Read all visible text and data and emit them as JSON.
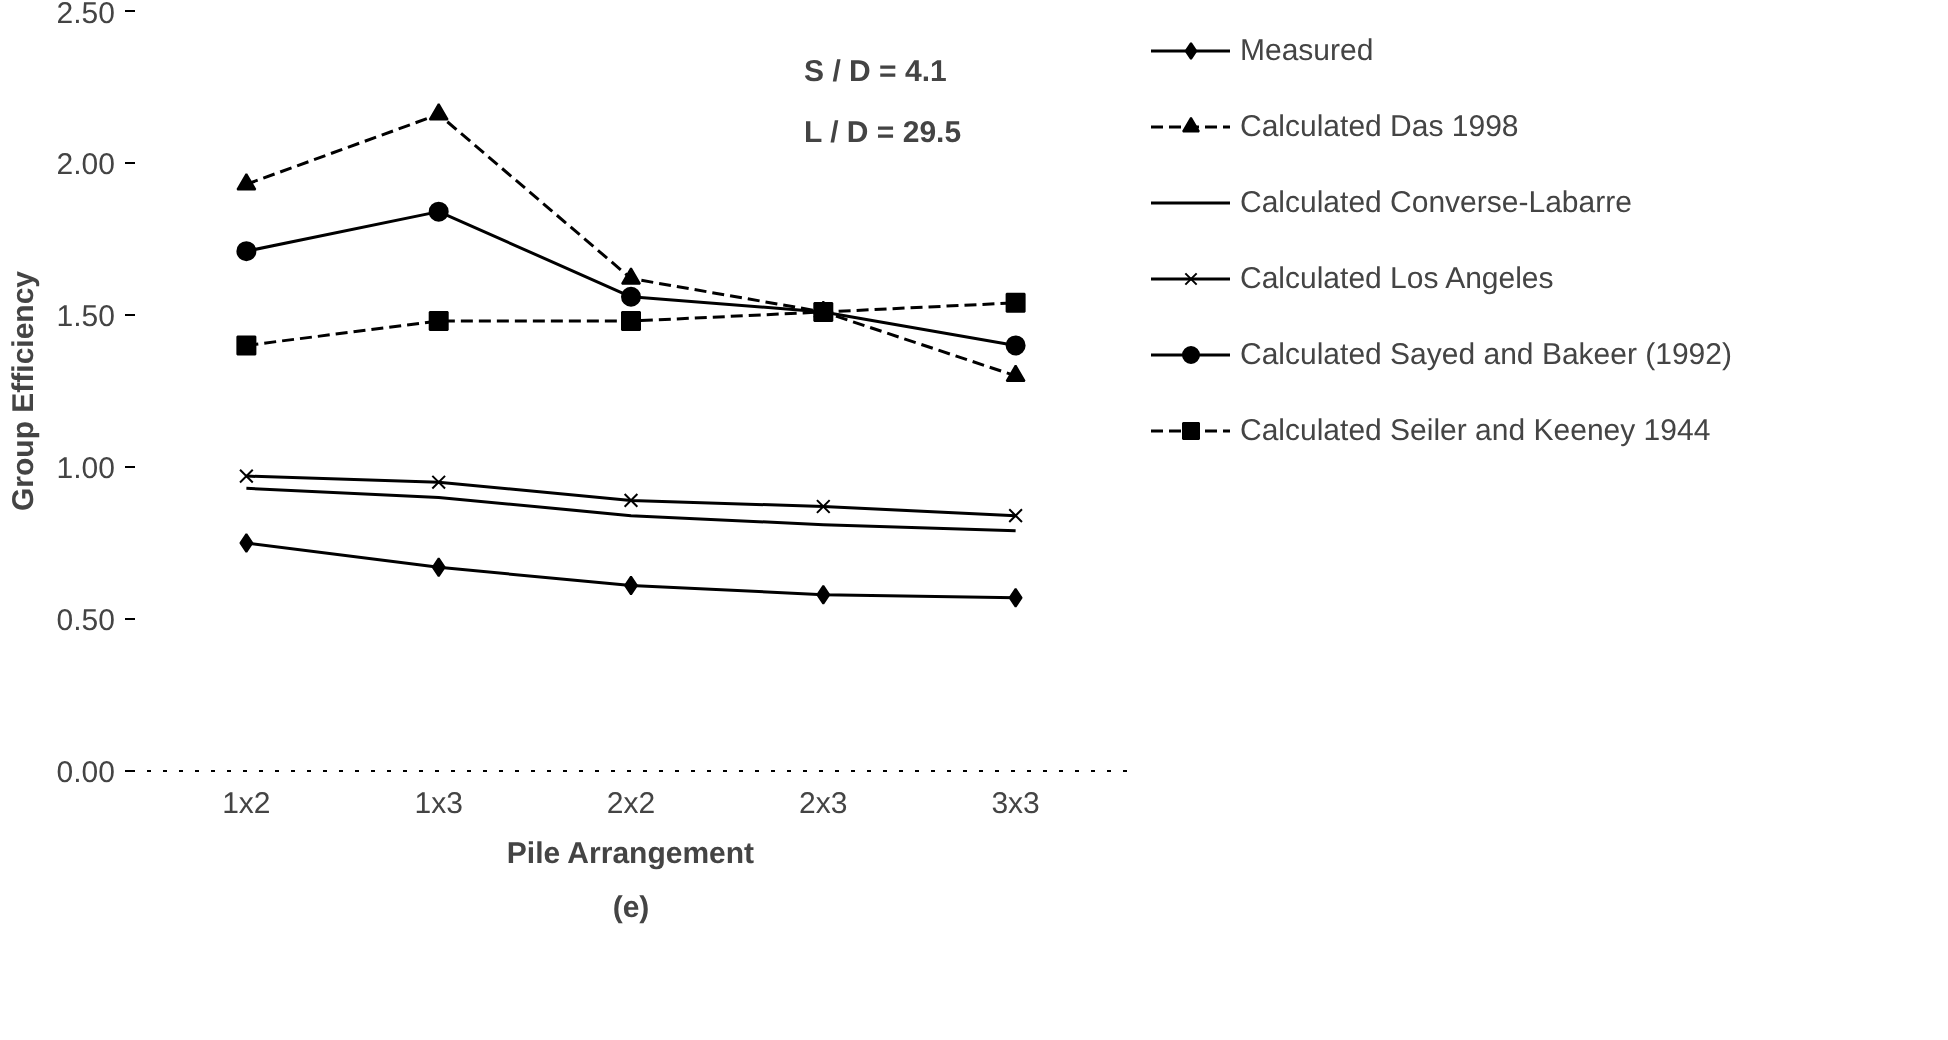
{
  "chart_data": {
    "type": "line",
    "xlabel": "Pile Arrangement",
    "ylabel": "Group Efficiency",
    "categories": [
      "1x2",
      "1x3",
      "2x2",
      "2x3",
      "3x3"
    ],
    "ylim": [
      0,
      2.5
    ],
    "yticks": [
      {
        "value": 0,
        "label": "0.00"
      },
      {
        "value": 0.5,
        "label": "0.50"
      },
      {
        "value": 1,
        "label": "1.00"
      },
      {
        "value": 1.5,
        "label": "1.50"
      },
      {
        "value": 2,
        "label": "2.00"
      },
      {
        "value": 2.5,
        "label": "2.50"
      }
    ],
    "grid": false,
    "legend": "right",
    "annotations": [
      "S / D = 4.1",
      "L / D = 29.5",
      "(e)"
    ],
    "series": [
      {
        "name": "Measured",
        "color": "#000000",
        "marker": "diamond",
        "line_style": "solid",
        "values": [
          0.75,
          0.67,
          0.61,
          0.58,
          0.57
        ]
      },
      {
        "name": "Calculated Das 1998",
        "color": "#000000",
        "marker": "triangle",
        "line_style": "dashed",
        "values": [
          1.93,
          2.16,
          1.62,
          1.51,
          1.3
        ]
      },
      {
        "name": "Calculated Converse-Labarre",
        "color": "#000000",
        "marker": "none",
        "line_style": "solid",
        "values": [
          0.93,
          0.9,
          0.84,
          0.81,
          0.79
        ]
      },
      {
        "name": "Calculated Los Angeles",
        "color": "#000000",
        "marker": "cross",
        "line_style": "solid",
        "values": [
          0.97,
          0.95,
          0.89,
          0.87,
          0.84
        ]
      },
      {
        "name": "Calculated Sayed and Bakeer (1992)",
        "color": "#000000",
        "marker": "circle",
        "line_style": "solid",
        "values": [
          1.71,
          1.84,
          1.56,
          1.51,
          1.4
        ]
      },
      {
        "name": "Calculated Seiler and Keeney 1944",
        "color": "#000000",
        "marker": "square",
        "line_style": "dashed",
        "values": [
          1.4,
          1.48,
          1.48,
          1.51,
          1.54
        ]
      }
    ]
  }
}
